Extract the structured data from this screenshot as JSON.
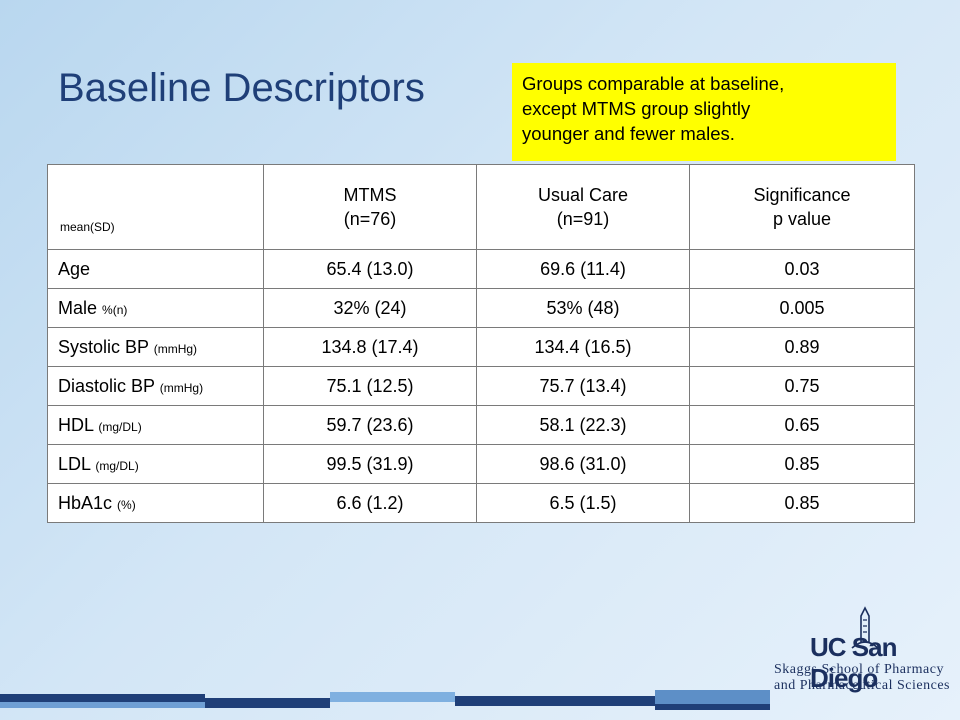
{
  "title": "Baseline Descriptors",
  "note": {
    "line1": "Groups comparable at baseline,",
    "line2": "except MTMS group slightly",
    "line3": "younger and fewer males."
  },
  "table": {
    "corner": "mean(SD)",
    "headers": [
      {
        "line1": "MTMS",
        "line2": "(n=76)"
      },
      {
        "line1": "Usual Care",
        "line2": "(n=91)"
      },
      {
        "line1": "Significance",
        "line2": "p value"
      }
    ],
    "rows": [
      {
        "label": "Age",
        "unit": "",
        "mtms": "65.4 (13.0)",
        "usual": "69.6 (11.4)",
        "p": "0.03"
      },
      {
        "label": "Male",
        "unit": "%(n)",
        "mtms": "32% (24)",
        "usual": "53% (48)",
        "p": "0.005"
      },
      {
        "label": "Systolic BP",
        "unit": "(mmHg)",
        "mtms": "134.8 (17.4)",
        "usual": "134.4 (16.5)",
        "p": "0.89"
      },
      {
        "label": "Diastolic BP",
        "unit": "(mmHg)",
        "mtms": "75.1 (12.5)",
        "usual": "75.7 (13.4)",
        "p": "0.75"
      },
      {
        "label": "HDL",
        "unit": "(mg/DL)",
        "mtms": "59.7 (23.6)",
        "usual": "58.1 (22.3)",
        "p": "0.65"
      },
      {
        "label": "LDL",
        "unit": "(mg/DL)",
        "mtms": "99.5 (31.9)",
        "usual": "98.6 (31.0)",
        "p": "0.85"
      },
      {
        "label": "HbA1c",
        "unit": "(%)",
        "mtms": "6.6 (1.2)",
        "usual": "6.5 (1.5)",
        "p": "0.85"
      }
    ]
  },
  "logo": {
    "name": "UC San Diego",
    "line2": "Skaggs School of Pharmacy",
    "line3": "and Pharmaceutical Sciences"
  },
  "colors": {
    "title": "#1f3f78",
    "note_bg": "#ffff00",
    "bar_dark": "#1f3f78",
    "bar_light": "#5d8fc7"
  }
}
